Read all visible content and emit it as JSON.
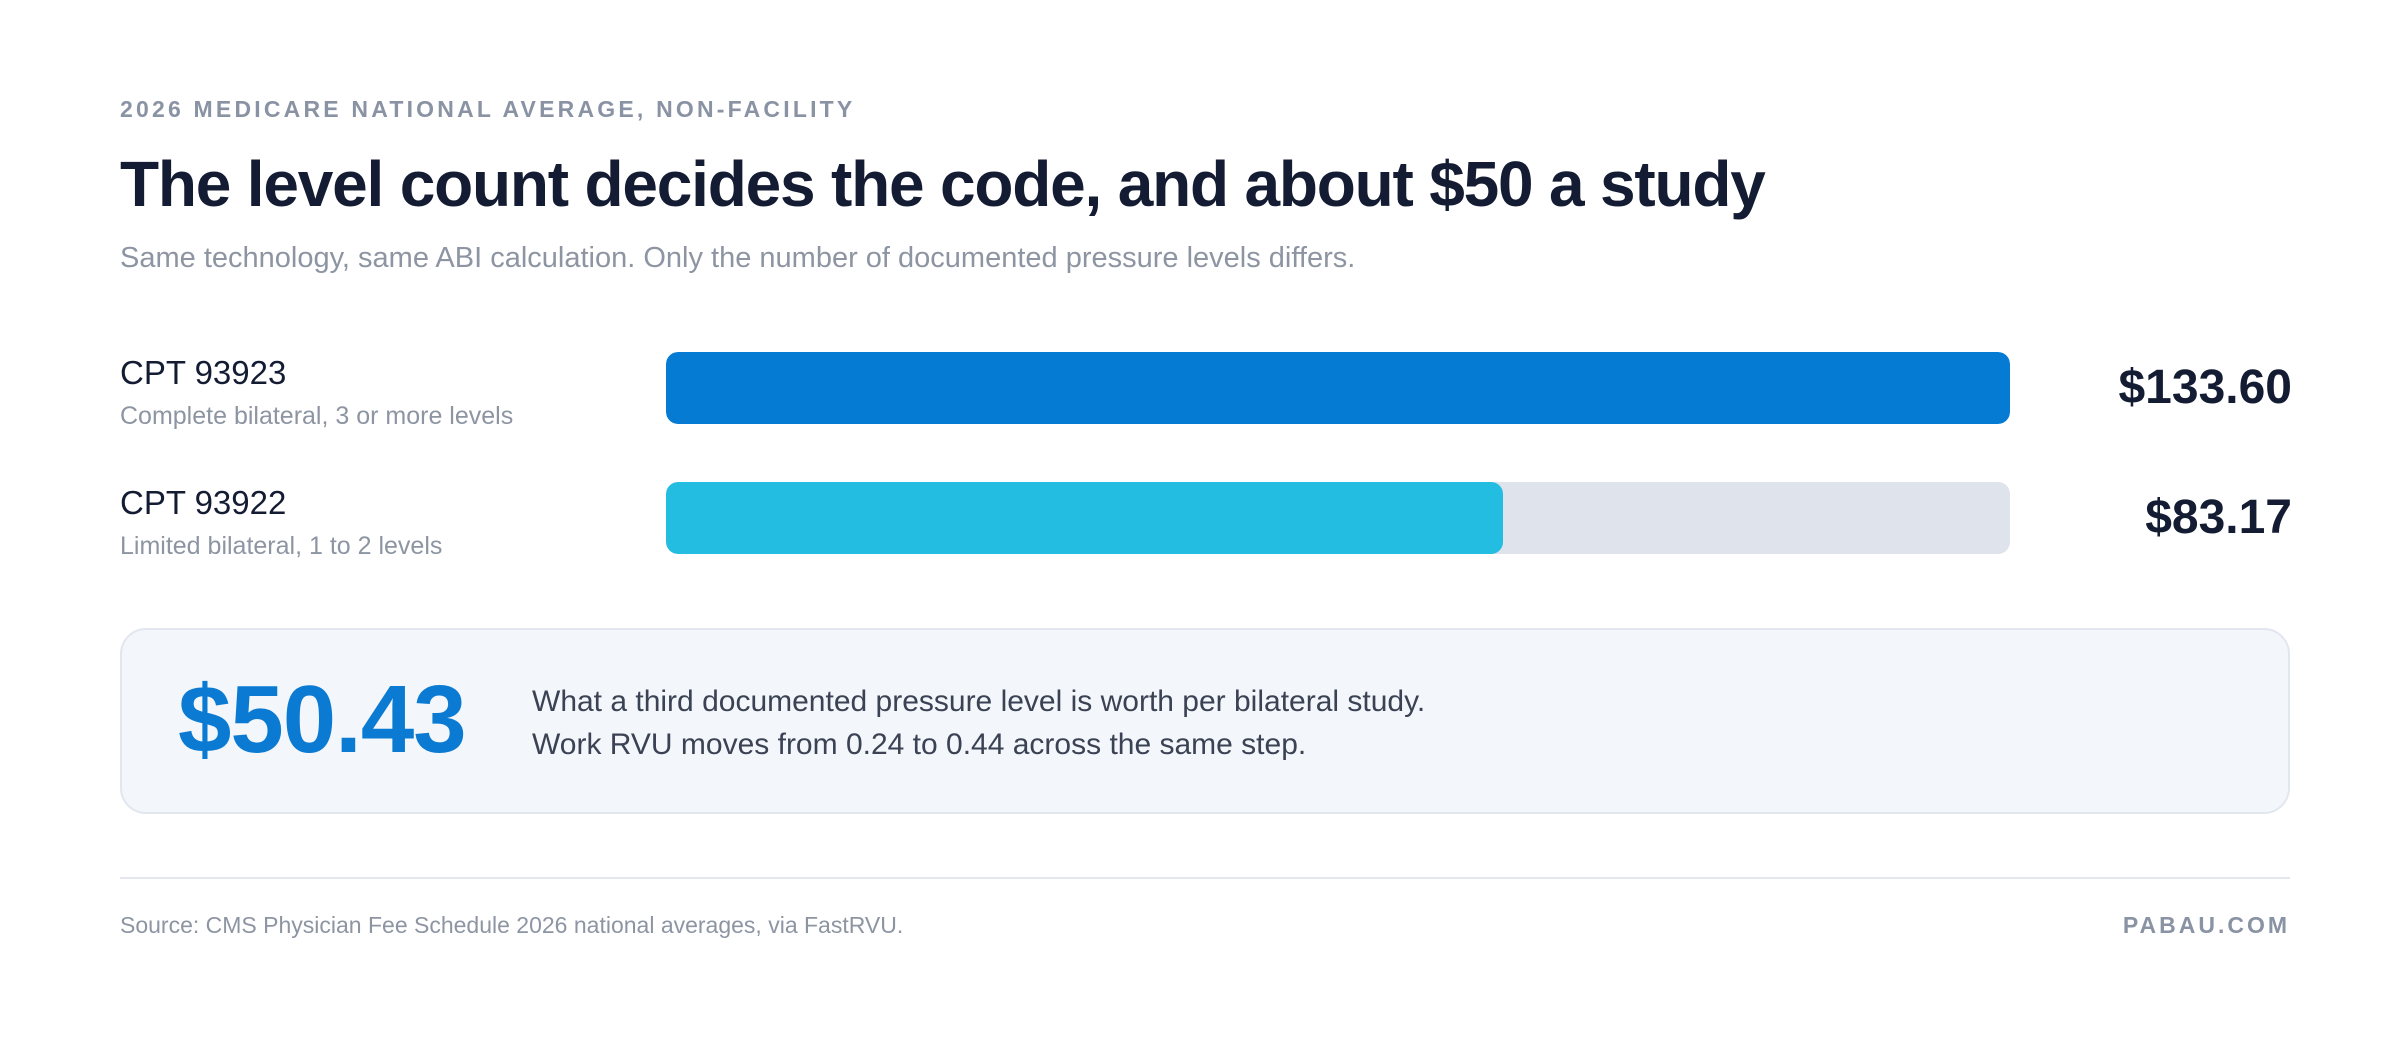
{
  "header": {
    "eyebrow": "2026 MEDICARE NATIONAL AVERAGE, NON-FACILITY",
    "title": "The level count decides the code, and about $50 a study",
    "subtitle": "Same technology, same ABI calculation. Only the number of documented pressure levels differs."
  },
  "chart_data": {
    "type": "bar",
    "orientation": "horizontal",
    "categories": [
      "CPT 93923",
      "CPT 93922"
    ],
    "descriptions": [
      "Complete bilateral, 3 or more levels",
      "Limited bilateral, 1 to 2 levels"
    ],
    "values": [
      133.6,
      83.17
    ],
    "value_labels": [
      "$133.60",
      "$83.17"
    ],
    "colors": [
      "#057bd4",
      "#23bde1"
    ],
    "track_color": "#dfe3ec",
    "xlim": [
      0,
      133.6
    ],
    "grid": false,
    "legend": "none"
  },
  "callout": {
    "value": "$50.43",
    "lines": [
      "What a third documented pressure level is worth per bilateral study.",
      "Work RVU moves from 0.24 to 0.44 across the same step."
    ]
  },
  "footer": {
    "source": "Source: CMS Physician Fee Schedule 2026 national averages, via FastRVU.",
    "brand": "PABAU.COM"
  },
  "colors": {
    "accent": "#0a7ad2",
    "title": "#141c33",
    "muted": "#8d95a3"
  }
}
